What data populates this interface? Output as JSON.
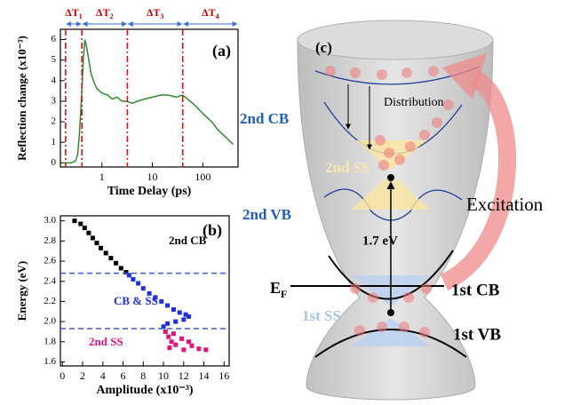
{
  "chart_data": [
    {
      "type": "line",
      "label": "(a)",
      "x_label": "Time Delay (ps)",
      "y_label": "Reflection change (x10⁻³)",
      "xscale": "log",
      "xlim": [
        0.15,
        500
      ],
      "ylim": [
        -0.2,
        6.5
      ],
      "xticks": [
        1,
        10,
        100
      ],
      "yticks": [
        0,
        1,
        2,
        3,
        4,
        5,
        6
      ],
      "series": [
        {
          "color": "#2e8b2e",
          "x": [
            0.17,
            0.25,
            0.3,
            0.33,
            0.36,
            0.4,
            0.43,
            0.46,
            0.5,
            0.55,
            0.6,
            0.7,
            0.8,
            1,
            1.3,
            1.6,
            2,
            2.5,
            3,
            4,
            5,
            7,
            10,
            15,
            20,
            30,
            40,
            50,
            70,
            100,
            150,
            200,
            300,
            400
          ],
          "y": [
            0,
            0,
            0.1,
            0.4,
            1.5,
            3.5,
            5.2,
            6.0,
            5.6,
            5.0,
            4.4,
            3.9,
            3.6,
            3.4,
            3.3,
            3.1,
            3.2,
            3.0,
            3.0,
            2.9,
            3.0,
            3.1,
            3.2,
            3.3,
            3.3,
            3.2,
            3.3,
            3.1,
            2.8,
            2.4,
            2.0,
            1.6,
            1.2,
            0.9
          ]
        }
      ],
      "markers": {
        "color": "#e01010",
        "x": [
          0.19,
          0.4,
          3.2,
          40
        ]
      },
      "intervals": [
        {
          "text": "ΔT",
          "sub": "1"
        },
        {
          "text": "ΔT",
          "sub": "2"
        },
        {
          "text": "ΔT",
          "sub": "3"
        },
        {
          "text": "ΔT",
          "sub": "4"
        }
      ]
    },
    {
      "type": "scatter",
      "label": "(b)",
      "x_label": "Amplitude (x10⁻³)",
      "y_label": "Energy (eV)",
      "xlim": [
        -0.2,
        16.5
      ],
      "ylim": [
        1.56,
        3.05
      ],
      "xticks": [
        0,
        2,
        4,
        6,
        8,
        10,
        12,
        14,
        16
      ],
      "yticks": [
        1.6,
        1.8,
        {
          "value": 2,
          "label": "2.0"
        },
        2.2,
        2.4,
        2.6,
        2.8,
        {
          "value": 3,
          "label": "3.0"
        }
      ],
      "series": [
        {
          "name": "2nd CB",
          "color": "#000000",
          "x": [
            1.2,
            1.8,
            2.2,
            2.6,
            3.0,
            3.4,
            3.8,
            4.3,
            4.8,
            5.3,
            5.8,
            6.3
          ],
          "y": [
            3.0,
            2.97,
            2.93,
            2.88,
            2.83,
            2.78,
            2.73,
            2.68,
            2.63,
            2.58,
            2.53,
            2.49
          ]
        },
        {
          "name": "CB & SS",
          "color": "#1f2fe0",
          "x": [
            6.6,
            7.0,
            7.5,
            8.0,
            8.6,
            9.2,
            9.8,
            10.4,
            11.0,
            11.6,
            12.2,
            12.5,
            12.0,
            11.2,
            10.4,
            10.0
          ],
          "y": [
            2.46,
            2.42,
            2.38,
            2.33,
            2.28,
            2.24,
            2.2,
            2.16,
            2.12,
            2.09,
            2.07,
            2.05,
            2.02,
            2.0,
            1.98,
            1.95
          ]
        },
        {
          "name": "2nd SS",
          "color": "#e8107a",
          "x": [
            10.2,
            11.0,
            10.5,
            11.8,
            10.8,
            12.5,
            11.2,
            12.8,
            10.6,
            13.5,
            12.0,
            14.2
          ],
          "y": [
            1.9,
            1.88,
            1.85,
            1.83,
            1.8,
            1.8,
            1.77,
            1.76,
            1.74,
            1.73,
            1.72,
            1.72
          ]
        }
      ],
      "hlines": {
        "color": "#3a5fcd",
        "y": [
          2.48,
          1.93
        ]
      }
    }
  ],
  "diagram": {
    "label": "(c)",
    "distribution": "Distribution",
    "cb2": "2nd CB",
    "ss2": "2nd SS",
    "vb2": "2nd VB",
    "gap": "1.7 eV",
    "excitation": "Excitation",
    "fermi": {
      "main": "E",
      "sub": "F"
    },
    "cb1": "1st CB",
    "ss1": "1st SS",
    "vb1": "1st VB"
  }
}
